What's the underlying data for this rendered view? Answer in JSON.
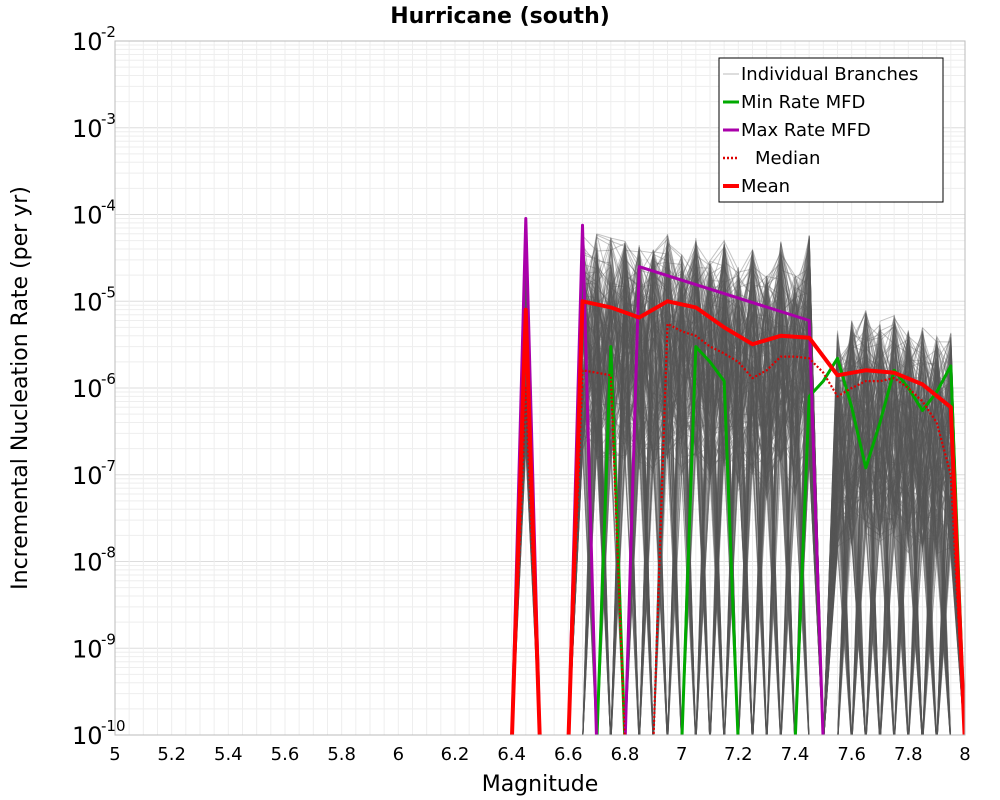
{
  "chart_data": {
    "type": "line",
    "title": "Hurricane (south)",
    "xlabel": "Magnitude",
    "ylabel": "Incremental Nucleation Rate (per yr)",
    "xlim": [
      5,
      8
    ],
    "ylim": [
      1e-10,
      0.01
    ],
    "y_scale": "log",
    "grid": true,
    "legend_position": "top-right",
    "x_ticks": [
      "5",
      "5.2",
      "5.4",
      "5.6",
      "5.8",
      "6",
      "6.2",
      "6.4",
      "6.6",
      "6.8",
      "7",
      "7.2",
      "7.4",
      "7.6",
      "7.8",
      "8"
    ],
    "y_ticks": [
      {
        "base": "10",
        "exp": "-10"
      },
      {
        "base": "10",
        "exp": "-9"
      },
      {
        "base": "10",
        "exp": "-8"
      },
      {
        "base": "10",
        "exp": "-7"
      },
      {
        "base": "10",
        "exp": "-6"
      },
      {
        "base": "10",
        "exp": "-5"
      },
      {
        "base": "10",
        "exp": "-4"
      },
      {
        "base": "10",
        "exp": "-3"
      },
      {
        "base": "10",
        "exp": "-2"
      }
    ],
    "series": [
      {
        "name": "Individual Branches",
        "color": "#555555",
        "style": "thin",
        "note_count": 250,
        "points": [
          [
            6.4,
            0
          ],
          [
            6.45,
            8e-05
          ],
          [
            6.5,
            0
          ],
          [
            6.6,
            0
          ],
          [
            6.65,
            7e-05
          ],
          [
            6.7,
            6e-05
          ],
          [
            6.75,
            5.5e-05
          ],
          [
            6.8,
            5e-05
          ],
          [
            6.85,
            4.5e-05
          ],
          [
            6.9,
            4e-05
          ],
          [
            6.95,
            6e-05
          ],
          [
            7.0,
            3.5e-05
          ],
          [
            7.05,
            6e-05
          ],
          [
            7.1,
            3e-05
          ],
          [
            7.15,
            5e-05
          ],
          [
            7.2,
            2.5e-05
          ],
          [
            7.25,
            4e-05
          ],
          [
            7.3,
            2e-05
          ],
          [
            7.35,
            5e-05
          ],
          [
            7.4,
            2e-05
          ],
          [
            7.45,
            6e-05
          ],
          [
            7.5,
            0
          ],
          [
            7.55,
            5e-06
          ],
          [
            7.6,
            6e-06
          ],
          [
            7.65,
            8e-06
          ],
          [
            7.7,
            6e-06
          ],
          [
            7.75,
            7e-06
          ],
          [
            7.8,
            5e-06
          ],
          [
            7.85,
            5e-06
          ],
          [
            7.9,
            4e-06
          ],
          [
            7.95,
            4.5e-06
          ],
          [
            8.0,
            0
          ]
        ]
      },
      {
        "name": "Min Rate MFD",
        "color": "#00aa00",
        "style": "solid",
        "points": [
          [
            6.4,
            0
          ],
          [
            6.45,
            0
          ],
          [
            6.5,
            0
          ],
          [
            6.6,
            0
          ],
          [
            6.65,
            0
          ],
          [
            6.7,
            0
          ],
          [
            6.75,
            3e-06
          ],
          [
            6.8,
            0
          ],
          [
            6.85,
            0
          ],
          [
            6.9,
            0
          ],
          [
            6.95,
            0
          ],
          [
            7.0,
            0
          ],
          [
            7.05,
            3e-06
          ],
          [
            7.1,
            2e-06
          ],
          [
            7.15,
            1.2e-06
          ],
          [
            7.2,
            0
          ],
          [
            7.25,
            0
          ],
          [
            7.3,
            0
          ],
          [
            7.35,
            0
          ],
          [
            7.4,
            0
          ],
          [
            7.45,
            8e-07
          ],
          [
            7.5,
            1.2e-06
          ],
          [
            7.55,
            2.2e-06
          ],
          [
            7.6,
            6e-07
          ],
          [
            7.65,
            1.2e-07
          ],
          [
            7.7,
            4e-07
          ],
          [
            7.75,
            1.6e-06
          ],
          [
            7.8,
            1e-06
          ],
          [
            7.85,
            5.5e-07
          ],
          [
            7.9,
            9e-07
          ],
          [
            7.95,
            1.8e-06
          ],
          [
            8.0,
            0
          ]
        ]
      },
      {
        "name": "Max Rate MFD",
        "color": "#aa00aa",
        "style": "solid",
        "points": [
          [
            6.4,
            0
          ],
          [
            6.45,
            9e-05
          ],
          [
            6.5,
            0
          ],
          [
            6.6,
            0
          ],
          [
            6.65,
            7.5e-05
          ],
          [
            6.7,
            0
          ],
          [
            6.75,
            0
          ],
          [
            6.8,
            0
          ],
          [
            6.85,
            2.5e-05
          ],
          [
            7.45,
            6e-06
          ],
          [
            7.5,
            0
          ]
        ]
      },
      {
        "name": "Median",
        "color": "#dd0000",
        "style": "dotted",
        "points": [
          [
            6.4,
            0
          ],
          [
            6.45,
            1e-06
          ],
          [
            6.5,
            0
          ],
          [
            6.6,
            0
          ],
          [
            6.65,
            1.6e-06
          ],
          [
            6.7,
            1.5e-06
          ],
          [
            6.75,
            1.4e-06
          ],
          [
            6.8,
            0
          ],
          [
            6.9,
            0
          ],
          [
            6.95,
            5.5e-06
          ],
          [
            7.0,
            4.5e-06
          ],
          [
            7.05,
            4e-06
          ],
          [
            7.1,
            3e-06
          ],
          [
            7.15,
            2.5e-06
          ],
          [
            7.2,
            2e-06
          ],
          [
            7.25,
            1.3e-06
          ],
          [
            7.3,
            1.6e-06
          ],
          [
            7.35,
            2.3e-06
          ],
          [
            7.4,
            2.3e-06
          ],
          [
            7.45,
            2.2e-06
          ],
          [
            7.5,
            1.5e-06
          ],
          [
            7.55,
            8e-07
          ],
          [
            7.6,
            1e-06
          ],
          [
            7.65,
            1.2e-06
          ],
          [
            7.7,
            1.2e-06
          ],
          [
            7.75,
            1.3e-06
          ],
          [
            7.8,
            1e-06
          ],
          [
            7.85,
            7e-07
          ],
          [
            7.9,
            4e-07
          ],
          [
            7.95,
            1e-07
          ],
          [
            8.0,
            0
          ]
        ]
      },
      {
        "name": "Mean",
        "color": "#ff0000",
        "style": "thick",
        "points": [
          [
            6.4,
            0
          ],
          [
            6.45,
            8e-06
          ],
          [
            6.5,
            0
          ],
          [
            6.6,
            0
          ],
          [
            6.65,
            1e-05
          ],
          [
            6.75,
            8.5e-06
          ],
          [
            6.85,
            6.5e-06
          ],
          [
            6.95,
            1e-05
          ],
          [
            7.05,
            8.5e-06
          ],
          [
            7.15,
            5e-06
          ],
          [
            7.25,
            3.2e-06
          ],
          [
            7.35,
            4e-06
          ],
          [
            7.45,
            3.8e-06
          ],
          [
            7.55,
            1.4e-06
          ],
          [
            7.65,
            1.6e-06
          ],
          [
            7.75,
            1.5e-06
          ],
          [
            7.85,
            1.1e-06
          ],
          [
            7.95,
            6e-07
          ],
          [
            8.0,
            0
          ]
        ]
      }
    ]
  }
}
